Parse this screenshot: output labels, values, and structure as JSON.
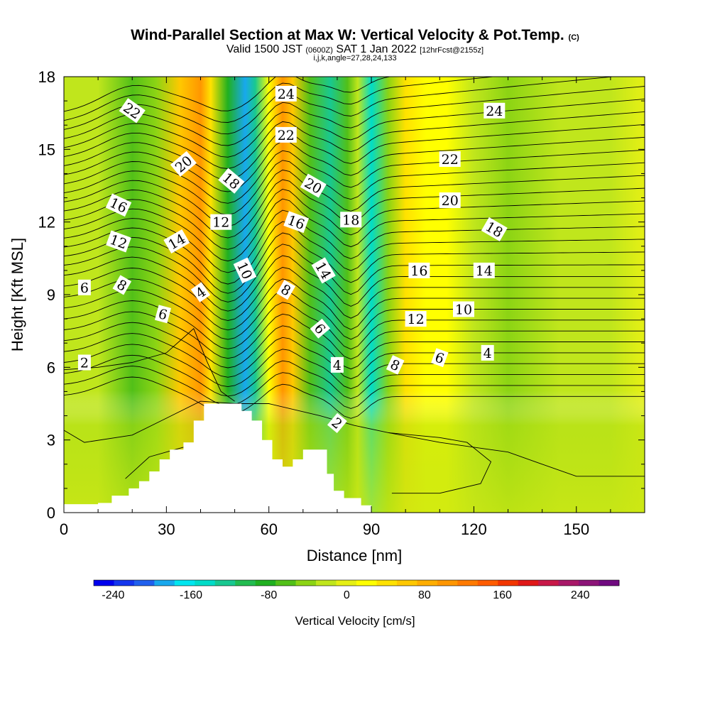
{
  "chart_data": {
    "type": "heatmap",
    "title": "Wind-Parallel Section at Max W: Vertical Velocity & Pot.Temp.",
    "copyright": "(C)",
    "subtitle_main": "Valid 1500 JST",
    "subtitle_utc": "(0600Z)",
    "subtitle_date": "SAT 1 Jan 2022",
    "subtitle_fcst": "[12hrFcst@2155z]",
    "params": "i,j,k,angle=27,28,24,133",
    "xlabel": "Distance [nm]",
    "ylabel": "Height [Kft MSL]",
    "xlim": [
      0,
      170
    ],
    "ylim": [
      0,
      18
    ],
    "xticks": [
      "0",
      "30",
      "60",
      "90",
      "120",
      "150"
    ],
    "yticks": [
      "0",
      "3",
      "6",
      "9",
      "12",
      "15",
      "18"
    ],
    "colorbar_label": "Vertical Velocity [cm/s]",
    "colorbar_ticks": [
      "-240",
      "-160",
      "-80",
      "0",
      "80",
      "160",
      "240"
    ],
    "colorbar_tick_values": [
      -240,
      -160,
      -80,
      0,
      80,
      160,
      240
    ],
    "colorbar_range": [
      -260,
      280
    ],
    "colorbar_colors": [
      "#0000ee",
      "#1436ee",
      "#2060ee",
      "#18a8ee",
      "#00e6f0",
      "#00dcc8",
      "#18c890",
      "#22bc50",
      "#20b020",
      "#52c018",
      "#8cd414",
      "#c0e61c",
      "#e6f014",
      "#ffff00",
      "#ffe200",
      "#ffc800",
      "#ffae00",
      "#ff9600",
      "#ff7a00",
      "#ff5c00",
      "#f23600",
      "#e01818",
      "#c81848",
      "#a81868",
      "#8c1478",
      "#700a80"
    ],
    "terrain_profile": [
      [
        0,
        0.35
      ],
      [
        10,
        0.35
      ],
      [
        10,
        0.4
      ],
      [
        14,
        0.4
      ],
      [
        14,
        0.7
      ],
      [
        19,
        0.7
      ],
      [
        19,
        1.0
      ],
      [
        22,
        1.0
      ],
      [
        22,
        1.3
      ],
      [
        25,
        1.3
      ],
      [
        25,
        1.7
      ],
      [
        28,
        1.7
      ],
      [
        28,
        2.2
      ],
      [
        31,
        2.2
      ],
      [
        31,
        2.6
      ],
      [
        35,
        2.6
      ],
      [
        35,
        2.9
      ],
      [
        38,
        2.9
      ],
      [
        38,
        3.8
      ],
      [
        41,
        3.8
      ],
      [
        41,
        4.5
      ],
      [
        52,
        4.5
      ],
      [
        52,
        4.2
      ],
      [
        55,
        4.2
      ],
      [
        55,
        3.8
      ],
      [
        58,
        3.8
      ],
      [
        58,
        3.0
      ],
      [
        61,
        3.0
      ],
      [
        61,
        2.2
      ],
      [
        64,
        2.2
      ],
      [
        64,
        1.9
      ],
      [
        67,
        1.9
      ],
      [
        67,
        2.2
      ],
      [
        70,
        2.2
      ],
      [
        70,
        2.6
      ],
      [
        77,
        2.6
      ],
      [
        77,
        1.6
      ],
      [
        79,
        1.6
      ],
      [
        79,
        0.9
      ],
      [
        82,
        0.9
      ],
      [
        82,
        0.6
      ],
      [
        87,
        0.6
      ],
      [
        87,
        0.3
      ],
      [
        90,
        0.3
      ],
      [
        90,
        0
      ]
    ],
    "velocity_field": [
      {
        "x": 10,
        "w": -30
      },
      {
        "x": 20,
        "w": -60
      },
      {
        "x": 27,
        "w": -40
      },
      {
        "x": 34,
        "w": 60
      },
      {
        "x": 40,
        "w": 100
      },
      {
        "x": 43,
        "w": 40
      },
      {
        "x": 48,
        "w": -90
      },
      {
        "x": 53,
        "w": -180
      },
      {
        "x": 56,
        "w": -120
      },
      {
        "x": 60,
        "w": 20
      },
      {
        "x": 64,
        "w": 110
      },
      {
        "x": 67,
        "w": 70
      },
      {
        "x": 72,
        "w": -60
      },
      {
        "x": 78,
        "w": -120
      },
      {
        "x": 83,
        "w": -60
      },
      {
        "x": 86,
        "w": -20
      },
      {
        "x": 90,
        "w": -150
      },
      {
        "x": 95,
        "w": -40
      },
      {
        "x": 100,
        "w": 50
      },
      {
        "x": 106,
        "w": 20
      },
      {
        "x": 112,
        "w": 10
      },
      {
        "x": 120,
        "w": -30
      },
      {
        "x": 130,
        "w": -40
      },
      {
        "x": 145,
        "w": -20
      },
      {
        "x": 160,
        "w": -30
      },
      {
        "x": 170,
        "w": 0
      }
    ],
    "contour_labels": [
      {
        "text": "24",
        "x": 65,
        "y": 17.3,
        "angle": 0
      },
      {
        "text": "22",
        "x": 20,
        "y": 16.6,
        "angle": 35
      },
      {
        "text": "24",
        "x": 126,
        "y": 16.6,
        "angle": 0
      },
      {
        "text": "22",
        "x": 65,
        "y": 15.6,
        "angle": 0
      },
      {
        "text": "22",
        "x": 113,
        "y": 14.6,
        "angle": 0
      },
      {
        "text": "20",
        "x": 35,
        "y": 14.4,
        "angle": -40
      },
      {
        "text": "18",
        "x": 49,
        "y": 13.7,
        "angle": 40
      },
      {
        "text": "20",
        "x": 73,
        "y": 13.5,
        "angle": 30
      },
      {
        "text": "16",
        "x": 16,
        "y": 12.7,
        "angle": 25
      },
      {
        "text": "20",
        "x": 113,
        "y": 12.9,
        "angle": 0
      },
      {
        "text": "12",
        "x": 46,
        "y": 12.0,
        "angle": 0
      },
      {
        "text": "16",
        "x": 68,
        "y": 12.0,
        "angle": 20
      },
      {
        "text": "18",
        "x": 84,
        "y": 12.1,
        "angle": 0
      },
      {
        "text": "18",
        "x": 126,
        "y": 11.7,
        "angle": 30
      },
      {
        "text": "12",
        "x": 16,
        "y": 11.2,
        "angle": 20
      },
      {
        "text": "14",
        "x": 33,
        "y": 11.2,
        "angle": -30
      },
      {
        "text": "10",
        "x": 53,
        "y": 10.0,
        "angle": 65
      },
      {
        "text": "14",
        "x": 76,
        "y": 10.0,
        "angle": 60
      },
      {
        "text": "16",
        "x": 104,
        "y": 10.0,
        "angle": 0
      },
      {
        "text": "14",
        "x": 123,
        "y": 10.0,
        "angle": 0
      },
      {
        "text": "6",
        "x": 6,
        "y": 9.3,
        "angle": 0
      },
      {
        "text": "8",
        "x": 17,
        "y": 9.4,
        "angle": 30
      },
      {
        "text": "4",
        "x": 40,
        "y": 9.1,
        "angle": -35
      },
      {
        "text": "8",
        "x": 65,
        "y": 9.2,
        "angle": 30
      },
      {
        "text": "10",
        "x": 117,
        "y": 8.4,
        "angle": 0
      },
      {
        "text": "6",
        "x": 29,
        "y": 8.2,
        "angle": 15
      },
      {
        "text": "12",
        "x": 103,
        "y": 8.0,
        "angle": 0
      },
      {
        "text": "6",
        "x": 75,
        "y": 7.6,
        "angle": 50
      },
      {
        "text": "4",
        "x": 124,
        "y": 6.6,
        "angle": 0
      },
      {
        "text": "6",
        "x": 110,
        "y": 6.4,
        "angle": 20
      },
      {
        "text": "2",
        "x": 6,
        "y": 6.2,
        "angle": 0
      },
      {
        "text": "4",
        "x": 80,
        "y": 6.1,
        "angle": 0
      },
      {
        "text": "8",
        "x": 97,
        "y": 6.1,
        "angle": 25
      },
      {
        "text": "2",
        "x": 80,
        "y": 3.7,
        "angle": 40
      }
    ]
  }
}
